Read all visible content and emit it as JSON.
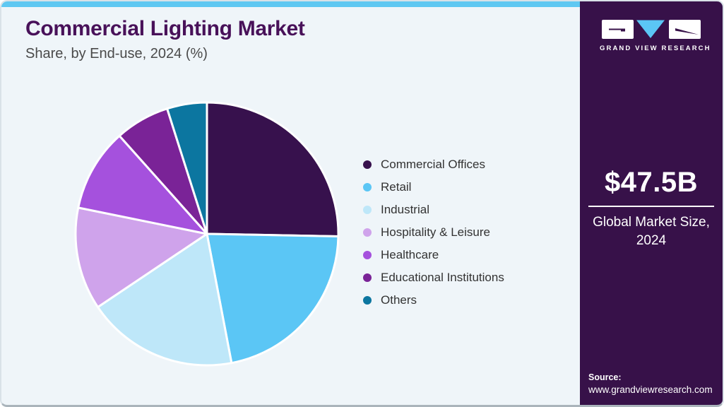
{
  "header": {
    "title": "Commercial Lighting Market",
    "subtitle": "Share, by End-use, 2024 (%)"
  },
  "branding": {
    "logo_text": "GRAND VIEW RESEARCH"
  },
  "sidebar": {
    "market_size_value": "$47.5B",
    "market_size_label_line1": "Global Market Size,",
    "market_size_label_line2": "2024",
    "source_label": "Source:",
    "source_url": "www.grandviewresearch.com"
  },
  "colors": {
    "accent_bar": "#5fc8f2",
    "sidebar_background": "#371149",
    "title_text": "#481159",
    "main_background": "#eff5f9",
    "logo_triangle": "#5bc6f5"
  },
  "chart_data": {
    "type": "pie",
    "title": "Commercial Lighting Market Share, by End-use, 2024 (%)",
    "categories": [
      "Commercial Offices",
      "Retail",
      "Industrial",
      "Hospitality & Leisure",
      "Healthcare",
      "Educational Institutions",
      "Others"
    ],
    "values": [
      25.3,
      21.7,
      18.6,
      12.6,
      10.2,
      6.7,
      4.9
    ],
    "colors": [
      "#37114d",
      "#5bc6f5",
      "#bee7f9",
      "#cfa3eb",
      "#a551dd",
      "#7a2397",
      "#0c76a0"
    ],
    "legend_position": "right",
    "start_angle_deg": 0,
    "direction": "clockwise",
    "units": "%"
  }
}
